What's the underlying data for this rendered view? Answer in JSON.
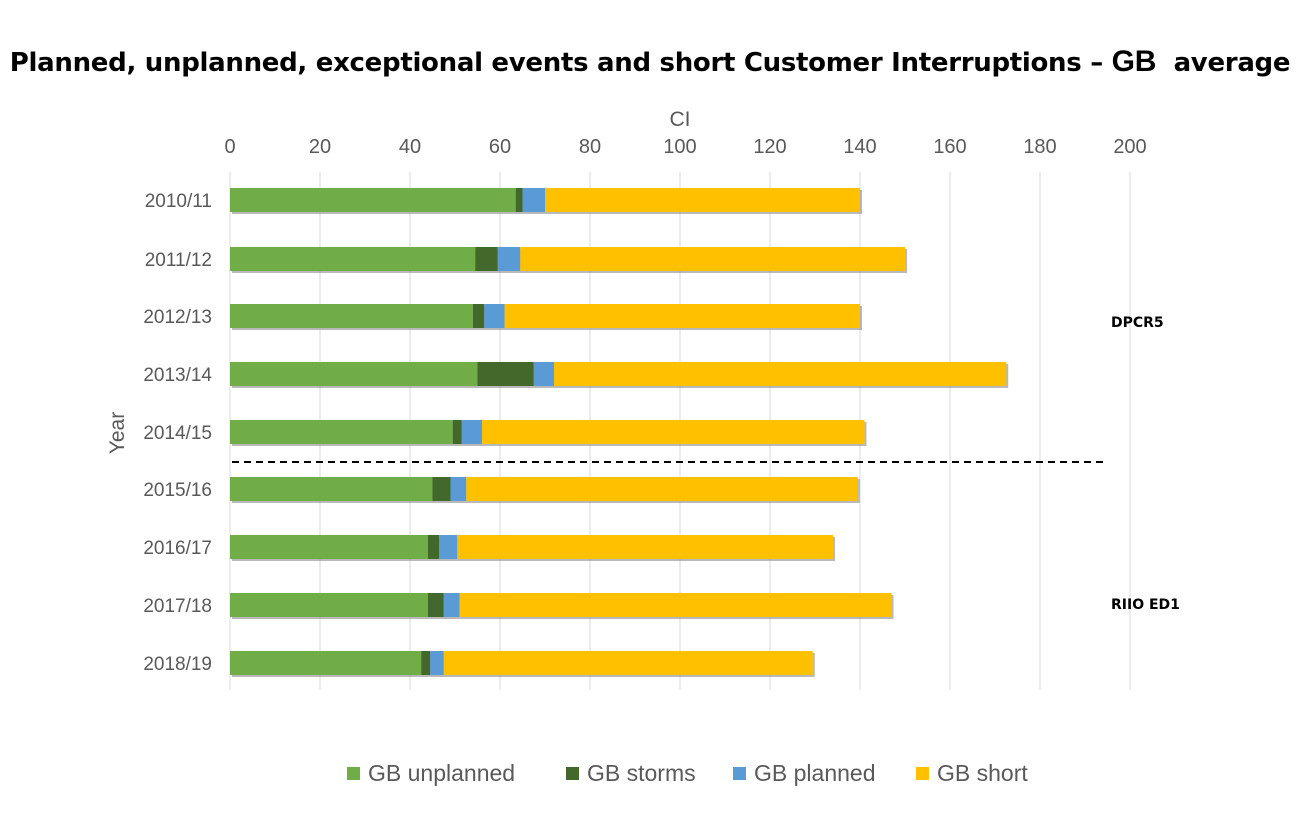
{
  "title": {
    "main": "Planned, unplanned, exceptional events and short Customer Interruptions – ",
    "gb": "GB",
    "suffix": "  average"
  },
  "chart_data": {
    "type": "bar",
    "orientation": "horizontal",
    "stacked": true,
    "title": "Planned, unplanned, exceptional events and short Customer Interruptions – GB  average",
    "xlabel": "CI",
    "ylabel": "Year",
    "xlim": [
      0,
      200
    ],
    "x_ticks": [
      0,
      20,
      40,
      60,
      80,
      100,
      120,
      140,
      160,
      180,
      200
    ],
    "x_axis_position": "top",
    "grid": "vertical",
    "legend_position": "bottom",
    "categories": [
      "2010/11",
      "2011/12",
      "2012/13",
      "2013/14",
      "2014/15",
      "2015/16",
      "2016/17",
      "2017/18",
      "2018/19"
    ],
    "series": [
      {
        "name": "GB unplanned",
        "color": "#70ad47",
        "values": [
          63.5,
          54.5,
          54,
          55,
          49.5,
          45,
          44,
          44,
          42.5
        ]
      },
      {
        "name": "GB storms",
        "color": "#43682b",
        "values": [
          1.5,
          5,
          2.5,
          12.5,
          2,
          4,
          2.5,
          3.5,
          2
        ]
      },
      {
        "name": "GB planned",
        "color": "#5b9bd5",
        "values": [
          5,
          5,
          4.5,
          4.5,
          4.5,
          3.5,
          4,
          3.5,
          3
        ]
      },
      {
        "name": "GB short",
        "color": "#ffc000",
        "values": [
          70,
          85.5,
          79,
          100.5,
          85,
          87,
          83.5,
          96,
          82
        ]
      }
    ],
    "annotations": [
      {
        "text": "DPCR5",
        "applies_to": [
          "2010/11",
          "2011/12",
          "2012/13",
          "2013/14",
          "2014/15"
        ]
      },
      {
        "text": "RIIO ED1",
        "applies_to": [
          "2015/16",
          "2016/17",
          "2017/18",
          "2018/19"
        ]
      }
    ],
    "divider": {
      "style": "dashed",
      "between": [
        "2014/15",
        "2015/16"
      ]
    }
  }
}
